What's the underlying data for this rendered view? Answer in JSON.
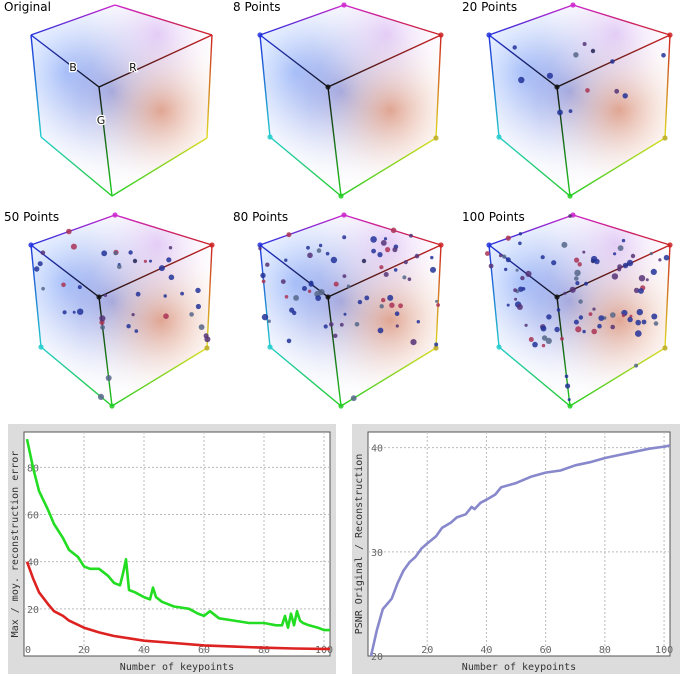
{
  "cubes": [
    {
      "title": "Original",
      "points": 0,
      "axes": {
        "b": "B",
        "r": "R",
        "g": "G"
      }
    },
    {
      "title": "8 Points",
      "points": 8
    },
    {
      "title": "20 Points",
      "points": 20
    },
    {
      "title": "50 Points",
      "points": 50
    },
    {
      "title": "80 Points",
      "points": 80
    },
    {
      "title": "100 Points",
      "points": 100
    }
  ],
  "chart_data": [
    {
      "type": "line",
      "title": "",
      "xlabel": "Number of keypoints",
      "ylabel": "Max / moy. reconstruction error",
      "xlim": [
        0,
        102
      ],
      "ylim": [
        0,
        95
      ],
      "xticks": [
        0,
        20,
        40,
        60,
        80,
        100
      ],
      "yticks": [
        20,
        40,
        60,
        80
      ],
      "grid": true,
      "series": [
        {
          "color": "#22dd22",
          "x": [
            1,
            3,
            5,
            8,
            10,
            13,
            15,
            18,
            20,
            22,
            25,
            28,
            30,
            32,
            33,
            34,
            35,
            37,
            40,
            42,
            43,
            44,
            46,
            50,
            55,
            58,
            60,
            62,
            65,
            70,
            75,
            80,
            84,
            86,
            87,
            88,
            89,
            90,
            91,
            92,
            93,
            95,
            98,
            100,
            102
          ],
          "y": [
            92,
            80,
            70,
            62,
            56,
            50,
            45,
            42,
            38,
            37,
            37,
            34,
            31,
            30,
            35,
            41,
            28,
            27,
            25,
            24,
            29,
            25,
            23,
            21,
            20,
            18,
            17,
            19,
            16,
            15,
            14,
            14,
            13,
            13,
            17,
            12,
            18,
            13,
            19,
            15,
            14,
            13,
            12,
            11,
            11
          ]
        },
        {
          "color": "#dd2222",
          "x": [
            1,
            3,
            5,
            8,
            10,
            13,
            15,
            20,
            25,
            30,
            35,
            40,
            50,
            60,
            70,
            80,
            90,
            100,
            102
          ],
          "y": [
            40,
            33,
            27,
            22,
            19,
            17,
            15,
            12,
            10,
            8.5,
            7.5,
            6.5,
            5.5,
            4.5,
            4,
            3.5,
            3.2,
            3,
            3
          ]
        }
      ]
    },
    {
      "type": "line",
      "title": "",
      "xlabel": "Number of keypoints",
      "ylabel": "PSNR Original / Reconstruction",
      "xlim": [
        0,
        102
      ],
      "ylim": [
        20,
        41.5
      ],
      "xticks": [
        20,
        40,
        60,
        80,
        100
      ],
      "yticks": [
        20,
        30,
        40
      ],
      "grid": true,
      "series": [
        {
          "color": "#8888cc",
          "x": [
            1,
            3,
            5,
            8,
            10,
            12,
            14,
            16,
            18,
            20,
            23,
            25,
            28,
            30,
            33,
            35,
            36,
            38,
            40,
            43,
            45,
            50,
            55,
            60,
            65,
            70,
            75,
            80,
            85,
            90,
            95,
            100,
            102
          ],
          "y": [
            20,
            22.5,
            24.5,
            25.5,
            27,
            28.2,
            29,
            29.5,
            30.3,
            30.8,
            31.5,
            32.3,
            32.8,
            33.3,
            33.6,
            34.3,
            34.1,
            34.7,
            35,
            35.5,
            36.2,
            36.6,
            37.2,
            37.6,
            37.8,
            38.3,
            38.6,
            39,
            39.3,
            39.6,
            39.9,
            40.1,
            40.2
          ]
        }
      ]
    }
  ]
}
